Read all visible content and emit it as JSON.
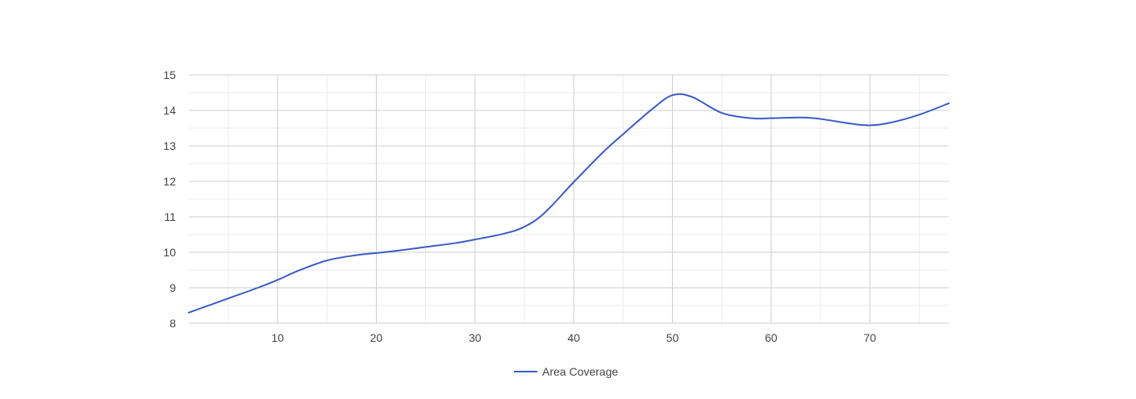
{
  "chart_data": {
    "type": "line",
    "title": "",
    "xlabel": "",
    "ylabel": "",
    "xlim": [
      1,
      78
    ],
    "ylim": [
      8,
      15
    ],
    "x_ticks": [
      10,
      20,
      30,
      40,
      50,
      60,
      70
    ],
    "y_ticks": [
      8,
      9,
      10,
      11,
      12,
      13,
      14,
      15
    ],
    "grid": true,
    "minor_grid": true,
    "legend_position": "bottom",
    "series": [
      {
        "name": "Area Coverage",
        "color": "#3a5bc7",
        "x": [
          1,
          5,
          8,
          10,
          12,
          15,
          18,
          20,
          22,
          25,
          28,
          30,
          33,
          35,
          37,
          40,
          43,
          45,
          48,
          50,
          52,
          55,
          58,
          60,
          63,
          65,
          68,
          70,
          72,
          75,
          78
        ],
        "y": [
          8.3,
          8.7,
          9.0,
          9.22,
          9.47,
          9.77,
          9.92,
          9.98,
          10.04,
          10.15,
          10.26,
          10.36,
          10.53,
          10.72,
          11.1,
          11.98,
          12.83,
          13.33,
          14.05,
          14.43,
          14.38,
          13.93,
          13.78,
          13.78,
          13.8,
          13.76,
          13.63,
          13.58,
          13.65,
          13.88,
          14.2
        ]
      }
    ]
  }
}
